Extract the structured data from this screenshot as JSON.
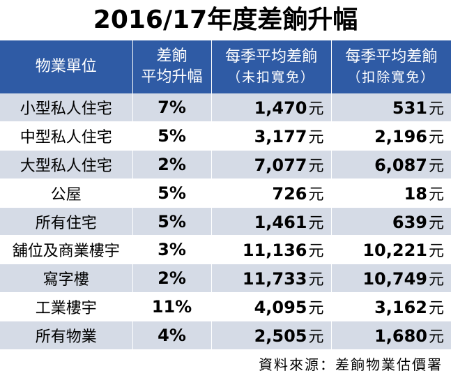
{
  "title": "2016/17年度差餉升幅",
  "headers": {
    "category": "物業單位",
    "increase_line1": "差餉",
    "increase_line2": "平均升幅",
    "before_line1": "每季平均差餉",
    "before_line2": "（未扣寬免）",
    "after_line1": "每季平均差餉",
    "after_line2": "（扣除寬免）"
  },
  "unit": "元",
  "rows": [
    {
      "category": "小型私人住宅",
      "increase": "7%",
      "before": "1,470",
      "after": "531"
    },
    {
      "category": "中型私人住宅",
      "increase": "5%",
      "before": "3,177",
      "after": "2,196"
    },
    {
      "category": "大型私人住宅",
      "increase": "2%",
      "before": "7,077",
      "after": "6,087"
    },
    {
      "category": "公屋",
      "increase": "5%",
      "before": "726",
      "after": "18"
    },
    {
      "category": "所有住宅",
      "increase": "5%",
      "before": "1,461",
      "after": "639"
    },
    {
      "category": "舖位及商業樓宇",
      "increase": "3%",
      "before": "11,136",
      "after": "10,221"
    },
    {
      "category": "寫字樓",
      "increase": "2%",
      "before": "11,733",
      "after": "10,749"
    },
    {
      "category": "工業樓宇",
      "increase": "11%",
      "before": "4,095",
      "after": "3,162"
    },
    {
      "category": "所有物業",
      "increase": "4%",
      "before": "2,505",
      "after": "1,680"
    }
  ],
  "source": "資料來源：差餉物業估價署",
  "colors": {
    "header_bg": "#2f5ba5",
    "stripe_bg": "#d5dbe6"
  }
}
